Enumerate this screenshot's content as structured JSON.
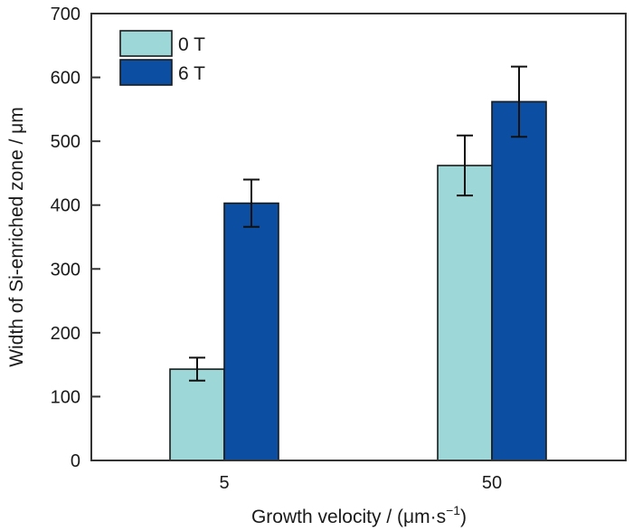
{
  "chart_data": {
    "type": "bar",
    "title": "",
    "xlabel": "Growth velocity / (μm·s",
    "xlabel_sup": "−1",
    "xlabel_close": ")",
    "ylabel": "Width of Si-enriched zone / μm",
    "categories": [
      "5",
      "50"
    ],
    "ylim": [
      0,
      700
    ],
    "yticks": [
      0,
      100,
      200,
      300,
      400,
      500,
      600,
      700
    ],
    "grid": false,
    "legend_position": "top-left",
    "series": [
      {
        "name": "0 T",
        "color": "#9dd7d8",
        "values": [
          143,
          462
        ],
        "errors": [
          18,
          47
        ]
      },
      {
        "name": "6 T",
        "color": "#0b4ea2",
        "values": [
          403,
          562
        ],
        "errors": [
          37,
          55
        ]
      }
    ]
  }
}
